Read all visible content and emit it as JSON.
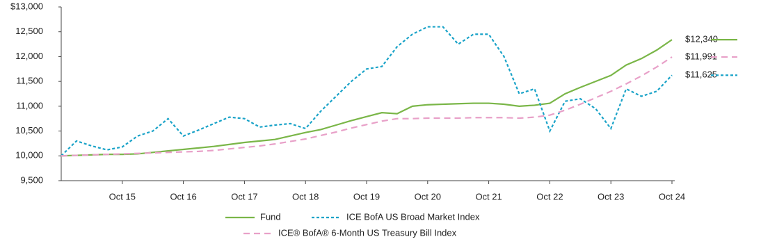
{
  "chart_data": {
    "type": "line",
    "categories": [
      null,
      null,
      null,
      null,
      "Oct 15",
      null,
      null,
      null,
      "Oct 16",
      null,
      null,
      null,
      "Oct 17",
      null,
      null,
      null,
      "Oct 18",
      null,
      null,
      null,
      "Oct 19",
      null,
      null,
      null,
      "Oct 20",
      null,
      null,
      null,
      "Oct 21",
      null,
      null,
      null,
      "Oct 22",
      null,
      null,
      null,
      "Oct 23",
      null,
      null,
      null,
      "Oct 24"
    ],
    "ylim": [
      9500,
      13000
    ],
    "yticks": [
      {
        "value": 9500,
        "label": "9,500"
      },
      {
        "value": 10000,
        "label": "10,000"
      },
      {
        "value": 10500,
        "label": "10,500"
      },
      {
        "value": 11000,
        "label": "11,000"
      },
      {
        "value": 11500,
        "label": "11,500"
      },
      {
        "value": 12000,
        "label": "12,000"
      },
      {
        "value": 12500,
        "label": "12,500"
      },
      {
        "value": 13000,
        "label": "$13,000"
      }
    ],
    "series": [
      {
        "name": "Fund",
        "color": "#7ab648",
        "dash": "solid",
        "end_label": "$12,340",
        "values": [
          10000,
          10010,
          10020,
          10030,
          10030,
          10040,
          10070,
          10100,
          10130,
          10160,
          10190,
          10230,
          10270,
          10300,
          10330,
          10400,
          10470,
          10530,
          10620,
          10710,
          10790,
          10870,
          10850,
          11000,
          11030,
          11040,
          11050,
          11060,
          11060,
          11040,
          11000,
          11020,
          11060,
          11250,
          11380,
          11500,
          11620,
          11830,
          11960,
          12130,
          12340
        ]
      },
      {
        "name": "ICE BofA US Broad Market Index",
        "color": "#1aa3c8",
        "dash": "dotted",
        "end_label": "$11,625",
        "values": [
          10000,
          10300,
          10200,
          10120,
          10180,
          10400,
          10500,
          10750,
          10400,
          10520,
          10650,
          10780,
          10750,
          10580,
          10620,
          10650,
          10550,
          10900,
          11200,
          11500,
          11750,
          11800,
          12200,
          12450,
          12600,
          12600,
          12250,
          12450,
          12450,
          12000,
          11250,
          11350,
          10500,
          11100,
          11150,
          10950,
          10550,
          11350,
          11200,
          11300,
          11625
        ]
      },
      {
        "name": "ICE® BofA® 6-Month US Treasury Bill Index",
        "color": "#e8a0c8",
        "dash": "dashed",
        "end_label": "$11,991",
        "values": [
          10000,
          10010,
          10020,
          10030,
          10040,
          10050,
          10060,
          10070,
          10080,
          10090,
          10110,
          10140,
          10170,
          10200,
          10240,
          10290,
          10340,
          10410,
          10480,
          10560,
          10630,
          10700,
          10750,
          10750,
          10760,
          10760,
          10760,
          10770,
          10770,
          10770,
          10760,
          10780,
          10820,
          10920,
          11040,
          11170,
          11300,
          11450,
          11610,
          11790,
          11991
        ]
      }
    ]
  }
}
